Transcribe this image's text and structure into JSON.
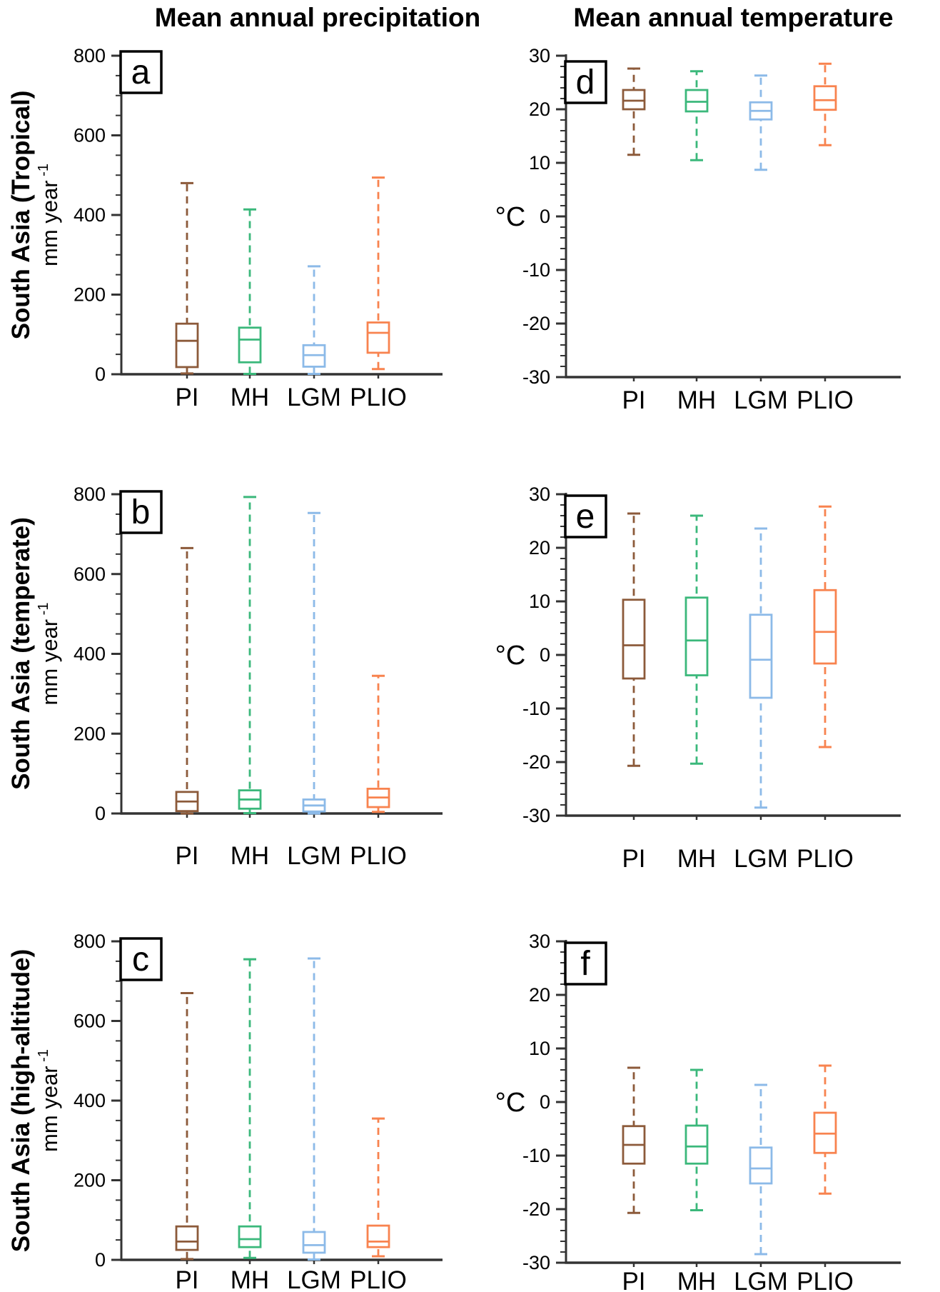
{
  "titles": {
    "left": "Mean annual precipitation",
    "right": "Mean annual temperature"
  },
  "rows": [
    {
      "label": "South Asia (Tropical)"
    },
    {
      "label": "South Asia (temperate)"
    },
    {
      "label": "South Asia (high-altitude)"
    }
  ],
  "colors": {
    "PI": "#8C5A3A",
    "MH": "#3BB87B",
    "LGM": "#8CBAE8",
    "PLIO": "#F8834F",
    "axis": "#333333"
  },
  "chart_data": [
    {
      "id": "a",
      "panel_label": "a",
      "type": "box",
      "title": "Mean annual precipitation",
      "row_label": "South Asia (Tropical)",
      "ylabel": "mm year",
      "ylabel_sup": "-1",
      "ylabel_rotated": true,
      "ylim": [
        0,
        800
      ],
      "yticks": [
        0,
        200,
        400,
        600,
        800
      ],
      "ytick_minor": 50,
      "categories": [
        "PI",
        "MH",
        "LGM",
        "PLIO"
      ],
      "boxes": [
        {
          "cat": "PI",
          "whisker_low": 2,
          "q1": 18,
          "median": 84,
          "q3": 127,
          "whisker_high": 480
        },
        {
          "cat": "MH",
          "whisker_low": 1,
          "q1": 30,
          "median": 87,
          "q3": 117,
          "whisker_high": 414
        },
        {
          "cat": "LGM",
          "whisker_low": 1,
          "q1": 19,
          "median": 48,
          "q3": 73,
          "whisker_high": 271
        },
        {
          "cat": "PLIO",
          "whisker_low": 13,
          "q1": 54,
          "median": 104,
          "q3": 130,
          "whisker_high": 494
        }
      ]
    },
    {
      "id": "b",
      "panel_label": "b",
      "type": "box",
      "title": "Mean annual precipitation",
      "row_label": "South Asia (temperate)",
      "ylabel": "mm year",
      "ylabel_sup": "-1",
      "ylabel_rotated": true,
      "ylim": [
        0,
        800
      ],
      "yticks": [
        0,
        200,
        400,
        600,
        800
      ],
      "ytick_minor": 50,
      "categories": [
        "PI",
        "MH",
        "LGM",
        "PLIO"
      ],
      "boxes": [
        {
          "cat": "PI",
          "whisker_low": 0,
          "q1": 6,
          "median": 30,
          "q3": 54,
          "whisker_high": 665
        },
        {
          "cat": "MH",
          "whisker_low": 1,
          "q1": 12,
          "median": 35,
          "q3": 58,
          "whisker_high": 793
        },
        {
          "cat": "LGM",
          "whisker_low": 0,
          "q1": 5,
          "median": 20,
          "q3": 35,
          "whisker_high": 753
        },
        {
          "cat": "PLIO",
          "whisker_low": 4,
          "q1": 16,
          "median": 40,
          "q3": 62,
          "whisker_high": 345
        }
      ]
    },
    {
      "id": "c",
      "panel_label": "c",
      "type": "box",
      "title": "Mean annual precipitation",
      "row_label": "South Asia (high-altitude)",
      "ylabel": "mm year",
      "ylabel_sup": "-1",
      "ylabel_rotated": true,
      "ylim": [
        0,
        800
      ],
      "yticks": [
        0,
        200,
        400,
        600,
        800
      ],
      "ytick_minor": 50,
      "categories": [
        "PI",
        "MH",
        "LGM",
        "PLIO"
      ],
      "boxes": [
        {
          "cat": "PI",
          "whisker_low": 2,
          "q1": 25,
          "median": 46,
          "q3": 84,
          "whisker_high": 670
        },
        {
          "cat": "MH",
          "whisker_low": 5,
          "q1": 32,
          "median": 52,
          "q3": 84,
          "whisker_high": 755
        },
        {
          "cat": "LGM",
          "whisker_low": 1,
          "q1": 18,
          "median": 37,
          "q3": 70,
          "whisker_high": 757
        },
        {
          "cat": "PLIO",
          "whisker_low": 9,
          "q1": 32,
          "median": 46,
          "q3": 86,
          "whisker_high": 355
        }
      ]
    },
    {
      "id": "d",
      "panel_label": "d",
      "type": "box",
      "title": "Mean annual temperature",
      "row_label": "South Asia (Tropical)",
      "ylabel": "°C",
      "ylabel_rotated": false,
      "ylim": [
        -30,
        30
      ],
      "yticks": [
        -30,
        -20,
        -10,
        0,
        10,
        20,
        30
      ],
      "ytick_minor": 2,
      "categories": [
        "PI",
        "MH",
        "LGM",
        "PLIO"
      ],
      "boxes": [
        {
          "cat": "PI",
          "whisker_low": 11.5,
          "q1": 20.0,
          "median": 21.6,
          "q3": 23.6,
          "whisker_high": 27.6
        },
        {
          "cat": "MH",
          "whisker_low": 10.5,
          "q1": 19.6,
          "median": 21.4,
          "q3": 23.6,
          "whisker_high": 27.1
        },
        {
          "cat": "LGM",
          "whisker_low": 8.7,
          "q1": 18.1,
          "median": 19.7,
          "q3": 21.3,
          "whisker_high": 26.3
        },
        {
          "cat": "PLIO",
          "whisker_low": 13.3,
          "q1": 19.9,
          "median": 21.7,
          "q3": 24.3,
          "whisker_high": 28.5
        }
      ]
    },
    {
      "id": "e",
      "panel_label": "e",
      "type": "box",
      "title": "Mean annual temperature",
      "row_label": "South Asia (temperate)",
      "ylabel": "°C",
      "ylabel_rotated": false,
      "ylim": [
        -30,
        30
      ],
      "yticks": [
        -30,
        -20,
        -10,
        0,
        10,
        20,
        30
      ],
      "ytick_minor": 2,
      "categories": [
        "PI",
        "MH",
        "LGM",
        "PLIO"
      ],
      "boxes": [
        {
          "cat": "PI",
          "whisker_low": -20.7,
          "q1": -4.4,
          "median": 1.8,
          "q3": 10.3,
          "whisker_high": 26.4
        },
        {
          "cat": "MH",
          "whisker_low": -20.3,
          "q1": -3.8,
          "median": 2.7,
          "q3": 10.7,
          "whisker_high": 26.0
        },
        {
          "cat": "LGM",
          "whisker_low": -28.5,
          "q1": -8.0,
          "median": -0.9,
          "q3": 7.5,
          "whisker_high": 23.6
        },
        {
          "cat": "PLIO",
          "whisker_low": -17.2,
          "q1": -1.6,
          "median": 4.3,
          "q3": 12.1,
          "whisker_high": 27.7
        }
      ]
    },
    {
      "id": "f",
      "panel_label": "f",
      "type": "box",
      "title": "Mean annual temperature",
      "row_label": "South Asia (high-altitude)",
      "ylabel": "°C",
      "ylabel_rotated": false,
      "ylim": [
        -30,
        30
      ],
      "yticks": [
        -30,
        -20,
        -10,
        0,
        10,
        20,
        30
      ],
      "ytick_minor": 2,
      "categories": [
        "PI",
        "MH",
        "LGM",
        "PLIO"
      ],
      "boxes": [
        {
          "cat": "PI",
          "whisker_low": -20.7,
          "q1": -11.5,
          "median": -8.0,
          "q3": -4.5,
          "whisker_high": 6.4
        },
        {
          "cat": "MH",
          "whisker_low": -20.2,
          "q1": -11.5,
          "median": -8.3,
          "q3": -4.4,
          "whisker_high": 6.0
        },
        {
          "cat": "LGM",
          "whisker_low": -28.4,
          "q1": -15.2,
          "median": -12.4,
          "q3": -8.5,
          "whisker_high": 3.2
        },
        {
          "cat": "PLIO",
          "whisker_low": -17.1,
          "q1": -9.5,
          "median": -5.9,
          "q3": -2.0,
          "whisker_high": 6.8
        }
      ]
    }
  ]
}
